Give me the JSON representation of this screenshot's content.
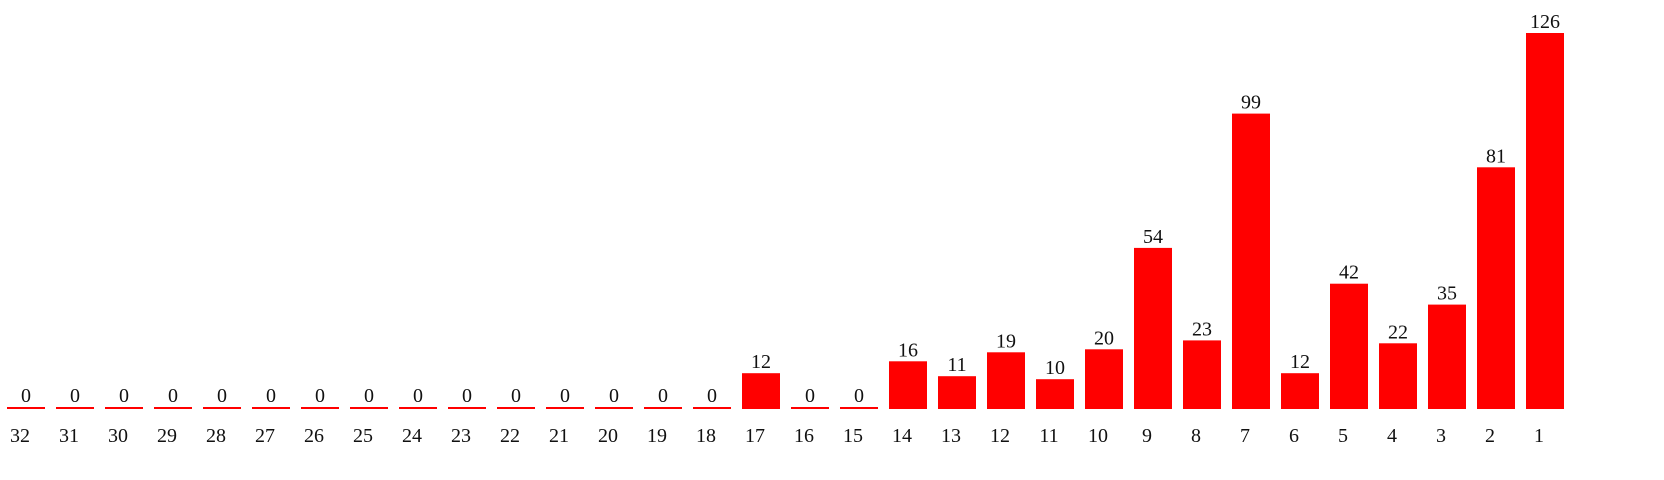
{
  "colors": {
    "bar": "#ff0000",
    "text": "#111111",
    "background": "#ffffff"
  },
  "chart_data": {
    "type": "bar",
    "title": "",
    "xlabel": "",
    "ylabel": "",
    "categories": [
      "32",
      "31",
      "30",
      "29",
      "28",
      "27",
      "26",
      "25",
      "24",
      "23",
      "22",
      "21",
      "20",
      "19",
      "18",
      "17",
      "16",
      "15",
      "14",
      "13",
      "12",
      "11",
      "10",
      "9",
      "8",
      "7",
      "6",
      "5",
      "4",
      "3",
      "2",
      "1"
    ],
    "values": [
      0,
      0,
      0,
      0,
      0,
      0,
      0,
      0,
      0,
      0,
      0,
      0,
      0,
      0,
      0,
      12,
      0,
      0,
      16,
      11,
      19,
      10,
      20,
      54,
      23,
      99,
      12,
      42,
      22,
      35,
      81,
      126
    ],
    "ylim": [
      0,
      126
    ],
    "grid": false,
    "legend": "none",
    "data_labels": true
  }
}
